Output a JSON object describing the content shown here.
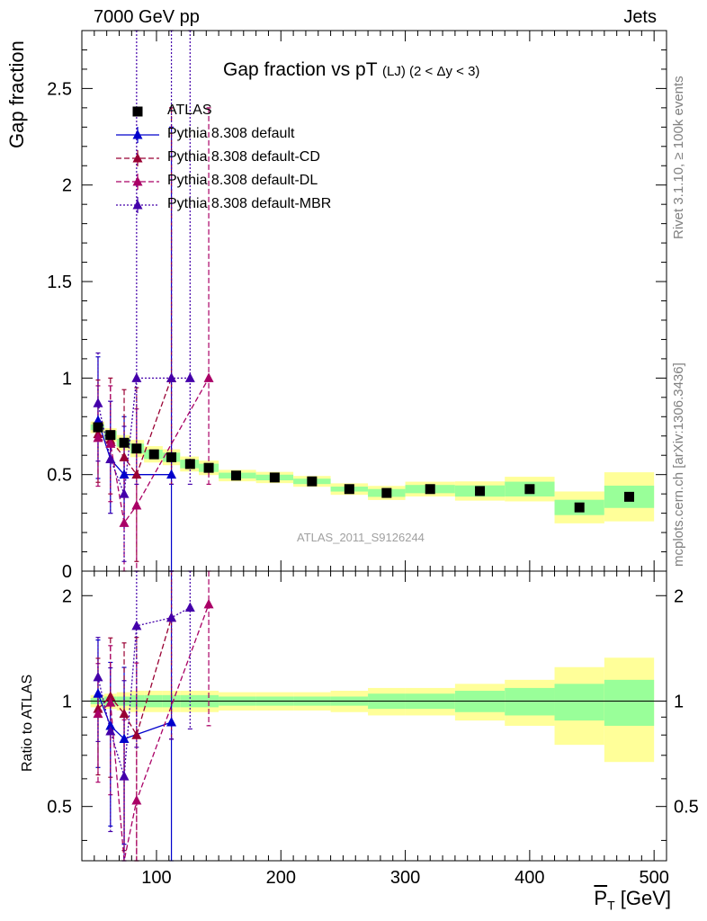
{
  "header": {
    "left": "7000 GeV pp",
    "right": "Jets"
  },
  "side": {
    "rivet": "Rivet 3.1.10, ≥ 100k events",
    "mcplots": "mcplots.cern.ch [arXiv:1306.3436]"
  },
  "title": {
    "main": "Gap fraction vs pT",
    "sub": "(LJ)  (2 < Δy < 3)"
  },
  "watermark": "ATLAS_2011_S9126244",
  "axes": {
    "ylabel_main": "Gap fraction",
    "ylabel_ratio": "Ratio to ATLAS",
    "xlabel_main": "P",
    "xlabel_sub": "T",
    "xlabel_unit": " [GeV]"
  },
  "colors": {
    "atlas": "#000000",
    "default": "#0000cc",
    "cd": "#990033",
    "dl": "#aa0066",
    "mbr": "#4400aa",
    "band_outer": "#ffff99",
    "band_inner": "#99ff99"
  },
  "legend": [
    {
      "label": "ATLAS",
      "key": "atlas"
    },
    {
      "label": "Pythia 8.308 default",
      "key": "default"
    },
    {
      "label": "Pythia 8.308 default-CD",
      "key": "cd"
    },
    {
      "label": "Pythia 8.308 default-DL",
      "key": "dl"
    },
    {
      "label": "Pythia 8.308 default-MBR",
      "key": "mbr"
    }
  ],
  "chart_data": {
    "type": "scatter",
    "title": "Gap fraction vs pT (LJ) (2 < Δy < 3)",
    "xlabel": "P_T [GeV]",
    "ylabel": "Gap fraction",
    "xlim": [
      40,
      510
    ],
    "ylim": [
      0,
      2.8
    ],
    "ratio_ylim": [
      0.35,
      2.35
    ],
    "x_ticks": [
      100,
      200,
      300,
      400,
      500
    ],
    "y_ticks": [
      0,
      0.5,
      1,
      1.5,
      2,
      2.5
    ],
    "y_tick_labels": [
      "0",
      "0.5",
      "1",
      "1.5",
      "2",
      "2.5"
    ],
    "ratio_ticks": [
      0.5,
      1,
      2
    ],
    "ratio_tick_labels": [
      "0.5",
      "1",
      "2"
    ],
    "atlas": {
      "x": [
        53,
        63,
        74,
        84,
        98,
        112,
        127,
        142,
        164,
        195,
        225,
        255,
        285,
        320,
        360,
        400,
        440,
        480
      ],
      "y": [
        0.745,
        0.705,
        0.665,
        0.635,
        0.605,
        0.59,
        0.555,
        0.535,
        0.495,
        0.485,
        0.465,
        0.425,
        0.405,
        0.425,
        0.415,
        0.425,
        0.33,
        0.385
      ],
      "band_edges": [
        47,
        58,
        68,
        79,
        90,
        105,
        119,
        134,
        150,
        180,
        210,
        240,
        270,
        300,
        340,
        380,
        420,
        460,
        500
      ],
      "band_outer": [
        0.04,
        0.05,
        0.06,
        0.07,
        0.07,
        0.07,
        0.07,
        0.07,
        0.06,
        0.06,
        0.06,
        0.07,
        0.09,
        0.09,
        0.12,
        0.15,
        0.25,
        0.33
      ],
      "band_inner": [
        0.02,
        0.03,
        0.03,
        0.04,
        0.04,
        0.04,
        0.04,
        0.04,
        0.03,
        0.03,
        0.03,
        0.03,
        0.05,
        0.05,
        0.07,
        0.09,
        0.12,
        0.15
      ]
    },
    "series": [
      {
        "name": "Pythia 8.308 default",
        "key": "default",
        "style": "solid",
        "x": [
          53,
          63,
          74,
          112
        ],
        "y": [
          0.78,
          0.58,
          0.5,
          0.5
        ],
        "err_lo": [
          0.3,
          0.28,
          0.25,
          0.5
        ],
        "err_hi": [
          0.33,
          0.3,
          0.3,
          1.8
        ],
        "ratio": [
          1.05,
          0.85,
          0.78,
          0.87
        ]
      },
      {
        "name": "Pythia 8.308 default-CD",
        "key": "cd",
        "style": "dashed",
        "x": [
          53,
          63,
          74,
          84,
          112
        ],
        "y": [
          0.71,
          0.68,
          0.59,
          0.5,
          1.0
        ],
        "err_lo": [
          0.25,
          0.28,
          0.35,
          0.45,
          0.55
        ],
        "err_hi": [
          0.28,
          0.32,
          0.35,
          0.45,
          1.4
        ],
        "ratio": [
          0.95,
          1.03,
          0.92,
          0.8,
          1.73
        ]
      },
      {
        "name": "Pythia 8.308 default-DL",
        "key": "dl",
        "style": "dashed",
        "x": [
          53,
          63,
          74,
          84,
          142
        ],
        "y": [
          0.69,
          0.66,
          0.25,
          0.34,
          1.0
        ],
        "err_lo": [
          0.25,
          0.3,
          0.25,
          0.34,
          0.55
        ],
        "err_hi": [
          0.27,
          0.3,
          0.4,
          0.5,
          1.4
        ],
        "ratio": [
          0.92,
          0.99,
          0.34,
          0.52,
          1.89
        ]
      },
      {
        "name": "Pythia 8.308 default-MBR",
        "key": "mbr",
        "style": "dotted",
        "x": [
          53,
          63,
          74,
          84,
          112,
          127
        ],
        "y": [
          0.87,
          0.58,
          0.4,
          1.0,
          1.0,
          1.0
        ],
        "err_lo": [
          0.3,
          0.28,
          0.35,
          0.55,
          0.55,
          0.55
        ],
        "err_hi": [
          0.26,
          0.3,
          0.35,
          1.8,
          1.8,
          1.8
        ],
        "ratio": [
          1.17,
          0.82,
          0.61,
          1.64,
          1.73,
          1.85
        ]
      }
    ]
  }
}
